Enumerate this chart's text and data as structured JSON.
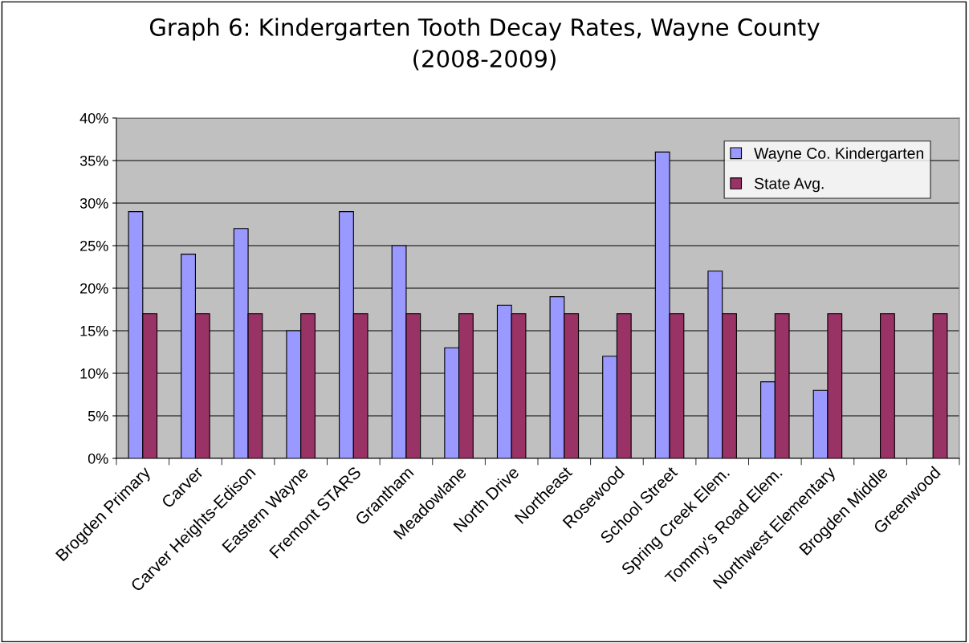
{
  "chart_data": {
    "type": "bar",
    "title": "Graph 6: Kindergarten Tooth Decay Rates, Wayne County\n(2008-2009)",
    "categories": [
      "Brogden Primary",
      "Carver",
      "Carver Heights-Edison",
      "Eastern Wayne",
      "Fremont STARS",
      "Grantham",
      "Meadowlane",
      "North Drive",
      "Northeast",
      "Rosewood",
      "School Street",
      "Spring Creek Elem.",
      "Tommy's Road Elem.",
      "Northwest Elementary",
      "Brogden Middle",
      "Greenwood"
    ],
    "series": [
      {
        "name": "Wayne Co. Kindergarten",
        "color": "#9999ff",
        "values": [
          29,
          24,
          27,
          15,
          29,
          25,
          13,
          18,
          19,
          12,
          36,
          22,
          9,
          8,
          null,
          null
        ]
      },
      {
        "name": "State Avg.",
        "color": "#993366",
        "values": [
          17,
          17,
          17,
          17,
          17,
          17,
          17,
          17,
          17,
          17,
          17,
          17,
          17,
          17,
          17,
          17
        ]
      }
    ],
    "ylim": [
      0,
      40
    ],
    "yticks": [
      {
        "value": 0,
        "label": "0%"
      },
      {
        "value": 5,
        "label": "5%"
      },
      {
        "value": 10,
        "label": "10%"
      },
      {
        "value": 15,
        "label": "15%"
      },
      {
        "value": 20,
        "label": "20%"
      },
      {
        "value": 25,
        "label": "25%"
      },
      {
        "value": 30,
        "label": "30%"
      },
      {
        "value": 35,
        "label": "35%"
      },
      {
        "value": 40,
        "label": "40%"
      }
    ],
    "grid": "y",
    "legend": "top right"
  }
}
